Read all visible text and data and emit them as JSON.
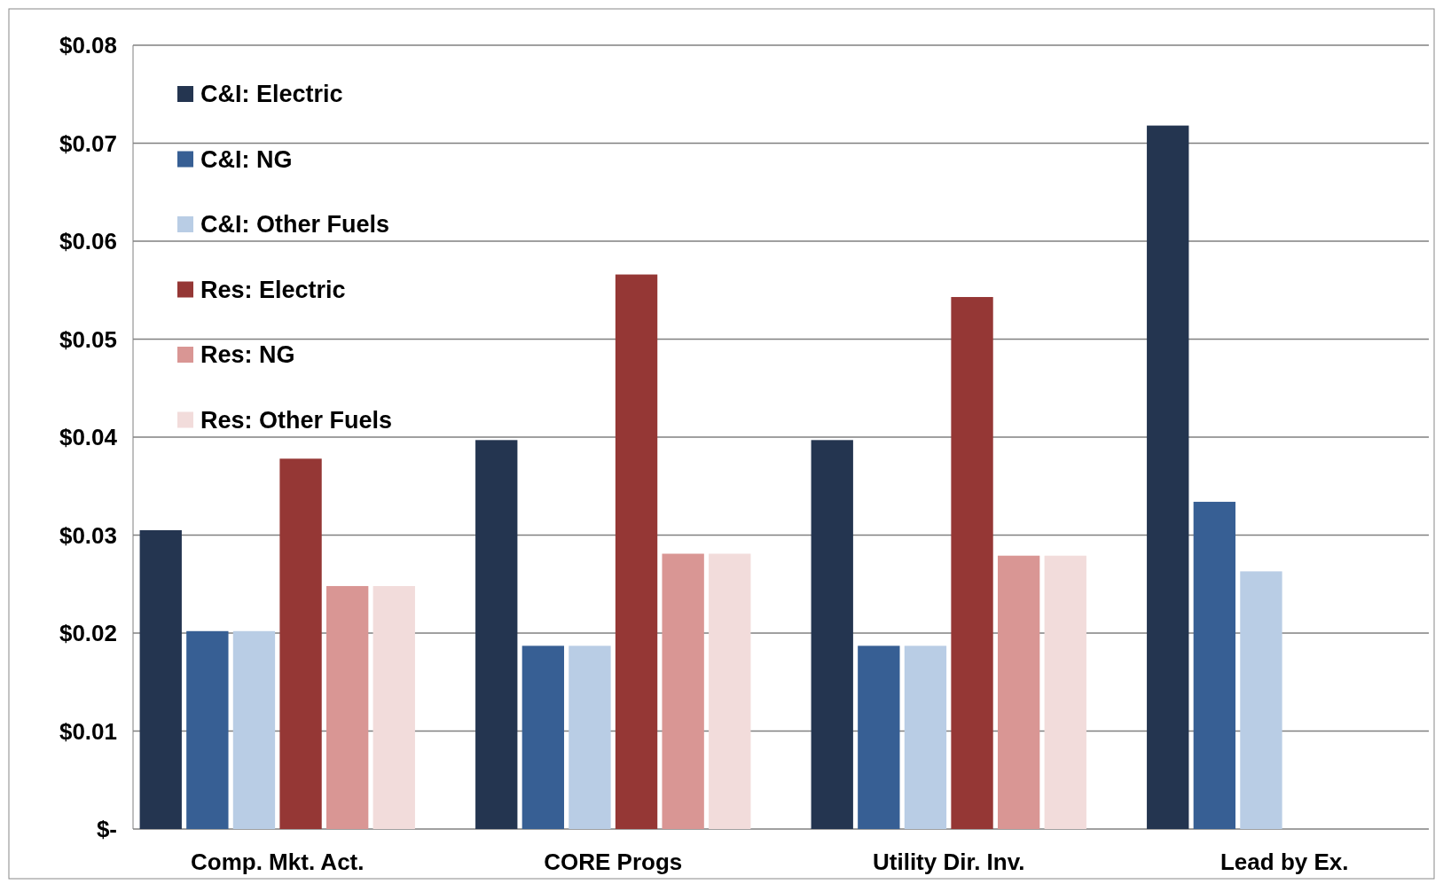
{
  "chart_data": {
    "type": "bar",
    "categories": [
      "Comp. Mkt. Act.",
      "CORE Progs",
      "Utility Dir. Inv.",
      "Lead by Ex."
    ],
    "series": [
      {
        "name": "C&I: Electric",
        "color": "#243550",
        "values": [
          0.0305,
          0.0397,
          0.0397,
          0.0718
        ]
      },
      {
        "name": "C&I: NG",
        "color": "#375f94",
        "values": [
          0.0202,
          0.0187,
          0.0187,
          0.0334
        ]
      },
      {
        "name": "C&I: Other Fuels",
        "color": "#b9cde5",
        "values": [
          0.0202,
          0.0187,
          0.0187,
          0.0263
        ]
      },
      {
        "name": "Res: Electric",
        "color": "#953735",
        "values": [
          0.0378,
          0.0566,
          0.0543,
          null
        ]
      },
      {
        "name": "Res: NG",
        "color": "#d99694",
        "values": [
          0.0248,
          0.0281,
          0.0279,
          null
        ]
      },
      {
        "name": "Res: Other Fuels",
        "color": "#f2dcdb",
        "values": [
          0.0248,
          0.0281,
          0.0279,
          null
        ]
      }
    ],
    "ylim": [
      0,
      0.08
    ],
    "yticks": [
      {
        "value": 0,
        "label": "$-"
      },
      {
        "value": 0.01,
        "label": "$0.01"
      },
      {
        "value": 0.02,
        "label": "$0.02"
      },
      {
        "value": 0.03,
        "label": "$0.03"
      },
      {
        "value": 0.04,
        "label": "$0.04"
      },
      {
        "value": 0.05,
        "label": "$0.05"
      },
      {
        "value": 0.06,
        "label": "$0.06"
      },
      {
        "value": 0.07,
        "label": "$0.07"
      },
      {
        "value": 0.08,
        "label": "$0.08"
      }
    ],
    "grid": "y",
    "legend": "top left"
  }
}
